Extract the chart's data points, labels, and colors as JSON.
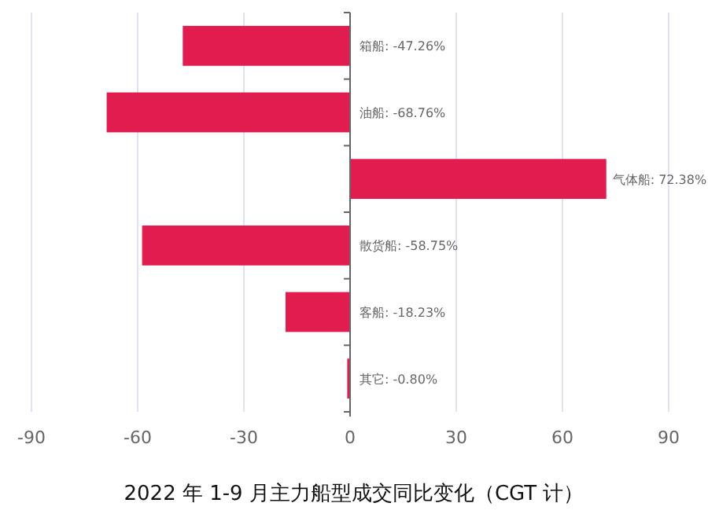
{
  "chart_data": {
    "type": "bar",
    "orientation": "horizontal",
    "title": "2022 年 1-9 月主力船型成交同比变化（CGT 计）",
    "categories": [
      null,
      null,
      null,
      null,
      null,
      null
    ],
    "values": [
      -47.26,
      -68.76,
      72.38,
      -58.75,
      -18.23,
      -0.8
    ],
    "value_labels": [
      "箱船: -47.26%",
      "油船: -68.76%",
      "气体船: 72.38%",
      "散货船: -58.75%",
      "客船: -18.23%",
      "其它: -0.80%"
    ],
    "color": "#e11d4f",
    "xlim": [
      -90,
      90
    ],
    "xticks": [
      -90,
      -60,
      -30,
      0,
      30,
      60,
      90
    ],
    "grid": "x"
  }
}
